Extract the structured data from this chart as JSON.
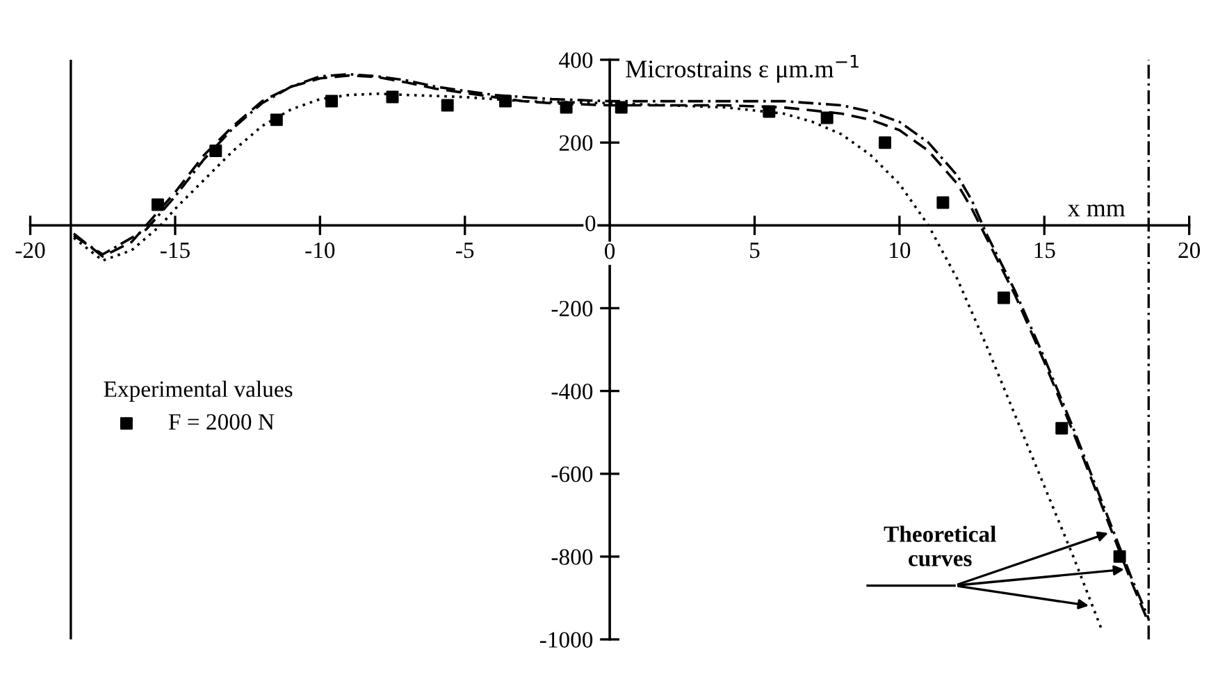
{
  "chart_data": {
    "type": "line",
    "xlabel": "x mm",
    "ylabel": "Microstrains ε μm.m$^{−1}$",
    "xlim": [
      -20,
      20
    ],
    "ylim": [
      -1000,
      400
    ],
    "xticks": [
      -20,
      -15,
      -10,
      -5,
      0,
      5,
      10,
      15,
      20
    ],
    "yticks": [
      -1000,
      -800,
      -600,
      -400,
      -200,
      0,
      200,
      400
    ],
    "legend": "left",
    "legend_title": "Experimental values",
    "series": [
      {
        "color": "#000000",
        "line_style": "dashed",
        "x": [
          -18.5,
          -17.5,
          -16.5,
          -16,
          -15,
          -14,
          -13,
          -12,
          -11,
          -10,
          -9,
          -8,
          -7,
          -6,
          -5,
          -4,
          -3,
          -2,
          0,
          2,
          4,
          6,
          8,
          9,
          10,
          11,
          12,
          12.5,
          13,
          14,
          15,
          16,
          17,
          18,
          18.6
        ],
        "values": [
          -20,
          -75,
          -40,
          0,
          80,
          170,
          240,
          300,
          335,
          355,
          362,
          358,
          345,
          330,
          320,
          310,
          300,
          295,
          290,
          290,
          290,
          285,
          270,
          255,
          230,
          180,
          100,
          40,
          -30,
          -170,
          -330,
          -500,
          -680,
          -860,
          -960
        ]
      },
      {
        "color": "#000000",
        "line_style": "dashdot",
        "x": [
          -18.5,
          -17.5,
          -16,
          -15,
          -14,
          -13,
          -12,
          -11,
          -10,
          -9,
          -8,
          -7,
          -6,
          -5,
          -4,
          -2,
          0,
          2,
          4,
          6,
          8,
          9,
          10,
          11,
          12,
          12.5,
          13,
          14,
          15,
          16,
          17,
          18,
          18.6
        ],
        "values": [
          -25,
          -70,
          -10,
          70,
          160,
          235,
          295,
          335,
          360,
          365,
          360,
          350,
          335,
          325,
          315,
          305,
          300,
          300,
          300,
          300,
          290,
          275,
          250,
          200,
          120,
          60,
          -20,
          -160,
          -320,
          -490,
          -670,
          -850,
          -950
        ]
      },
      {
        "color": "#000000",
        "line_style": "dotted",
        "x": [
          -18.5,
          -17.5,
          -16.5,
          -15.5,
          -15,
          -14,
          -13,
          -12,
          -11,
          -10,
          -9,
          -8,
          -7,
          -5,
          -3,
          0,
          2,
          4,
          6,
          7,
          8,
          9,
          10,
          11,
          12,
          13,
          14,
          15,
          16,
          17
        ],
        "values": [
          -30,
          -85,
          -60,
          0,
          40,
          110,
          180,
          240,
          280,
          305,
          315,
          318,
          315,
          310,
          300,
          295,
          290,
          285,
          270,
          250,
          220,
          170,
          100,
          0,
          -130,
          -290,
          -460,
          -630,
          -800,
          -980
        ]
      },
      {
        "type": "scatter",
        "name": "F = 2000 N",
        "color": "#000000",
        "marker": "square",
        "x": [
          -15.6,
          -13.6,
          -11.5,
          -9.6,
          -7.5,
          -5.6,
          -3.6,
          -1.5,
          0.4,
          5.5,
          7.5,
          9.5,
          11.5,
          13.6,
          15.6,
          17.6
        ],
        "values": [
          50,
          180,
          255,
          300,
          310,
          290,
          300,
          285,
          285,
          275,
          260,
          200,
          55,
          -175,
          -490,
          -800
        ]
      }
    ],
    "ref_lines": [
      {
        "axis": "x",
        "value": -18.6,
        "line_style": "solid",
        "color": "#000000"
      },
      {
        "axis": "x",
        "value": 18.6,
        "line_style": "dashdot",
        "color": "#000000"
      }
    ],
    "annotations": [
      {
        "text": "Theoretical\ncurves",
        "x": 15.4,
        "y": -740
      }
    ]
  }
}
